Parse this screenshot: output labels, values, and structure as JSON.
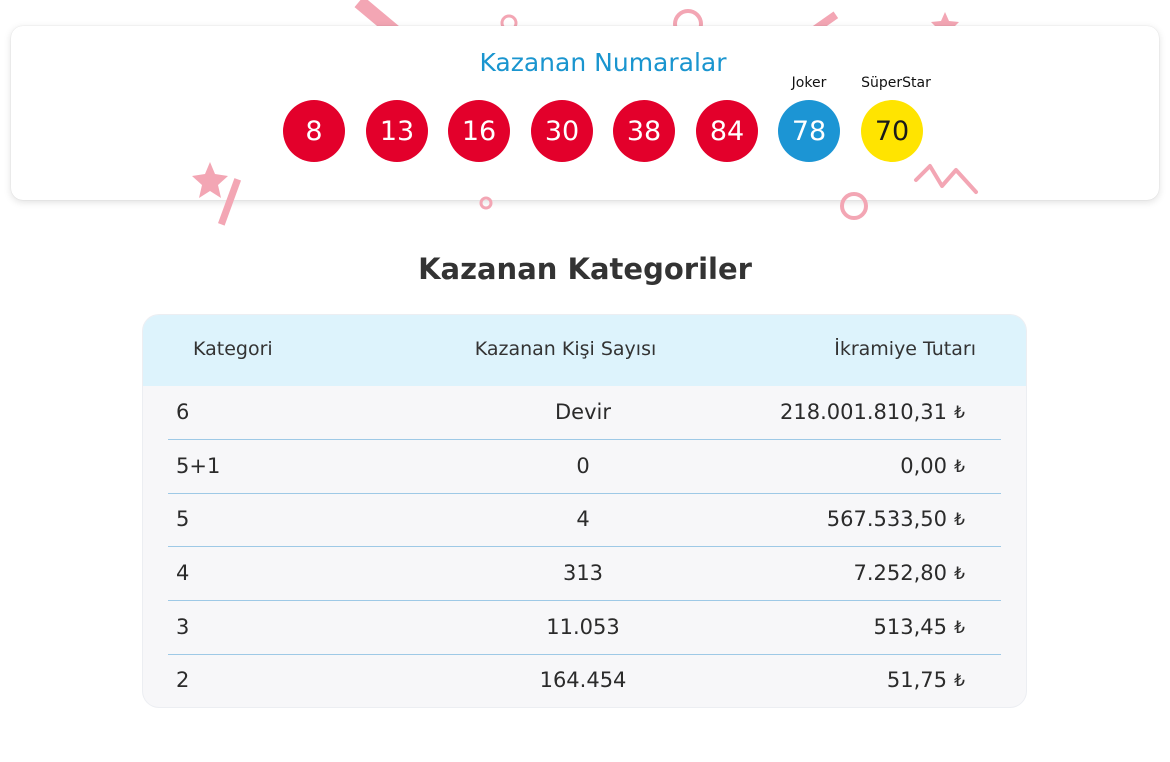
{
  "winning_numbers": {
    "title": "Kazanan Numaralar",
    "numbers": [
      "8",
      "13",
      "16",
      "30",
      "38",
      "84"
    ],
    "joker": {
      "label": "Joker",
      "value": "78"
    },
    "superstar": {
      "label": "SüperStar",
      "value": "70"
    }
  },
  "categories": {
    "title": "Kazanan Kategoriler",
    "headers": [
      "Kategori",
      "Kazanan Kişi Sayısı",
      "İkramiye Tutarı"
    ],
    "currency_symbol": "₺",
    "rows": [
      {
        "category": "6",
        "winners": "Devir",
        "prize": "218.001.810,31"
      },
      {
        "category": "5+1",
        "winners": "0",
        "prize": "0,00"
      },
      {
        "category": "5",
        "winners": "4",
        "prize": "567.533,50"
      },
      {
        "category": "4",
        "winners": "313",
        "prize": "7.252,80"
      },
      {
        "category": "3",
        "winners": "11.053",
        "prize": "513,45"
      },
      {
        "category": "2",
        "winners": "164.454",
        "prize": "51,75"
      }
    ]
  },
  "colors": {
    "title_blue": "#1a95cf",
    "ball_red": "#e3002b",
    "joker_blue": "#1c95d4",
    "superstar_yellow": "#ffe400",
    "header_bg": "#ddf3fc",
    "confetti_pink": "#f3a6b4"
  }
}
